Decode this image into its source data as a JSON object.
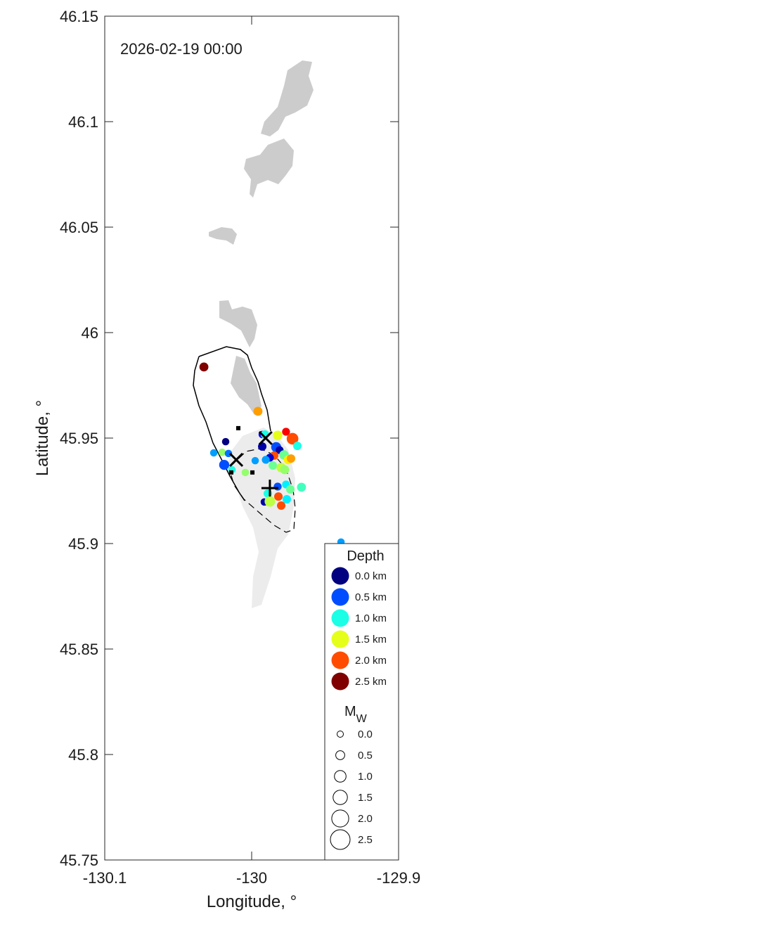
{
  "chart_data": {
    "type": "scatter",
    "title": "2026-02-19 00:00",
    "xlabel": "Longitude, °",
    "ylabel": "Latitude, °",
    "xlim": [
      -130.1,
      -129.9
    ],
    "ylim": [
      45.75,
      46.15
    ],
    "x_ticks": [
      "-130.1",
      "-130",
      "-129.9"
    ],
    "x_tick_values": [
      -130.1,
      -130.0,
      -129.9
    ],
    "y_ticks": [
      "45.75",
      "45.8",
      "45.85",
      "45.9",
      "45.95",
      "46",
      "46.05",
      "46.1",
      "46.15"
    ],
    "y_tick_values": [
      45.75,
      45.8,
      45.85,
      45.9,
      45.95,
      46.0,
      46.05,
      46.1,
      46.15
    ],
    "grid": false,
    "colormap": "jet",
    "color_range": [
      0,
      2.5
    ],
    "legend": {
      "placement": "bottom-right",
      "depth_title": "Depth",
      "depth_entries": [
        {
          "value": 0.0,
          "label": "0.0 km"
        },
        {
          "value": 0.5,
          "label": "0.5 km"
        },
        {
          "value": 1.0,
          "label": "1.0 km"
        },
        {
          "value": 1.5,
          "label": "1.5 km"
        },
        {
          "value": 2.0,
          "label": "2.0 km"
        },
        {
          "value": 2.5,
          "label": "2.5 km"
        }
      ],
      "mw_title": "M",
      "mw_subscript": "W",
      "mw_entries": [
        {
          "value": 0.0,
          "label": "0.0"
        },
        {
          "value": 0.5,
          "label": "0.5"
        },
        {
          "value": 1.0,
          "label": "1.0"
        },
        {
          "value": 1.5,
          "label": "1.5"
        },
        {
          "value": 2.0,
          "label": "2.0"
        },
        {
          "value": 2.5,
          "label": "2.5"
        }
      ]
    },
    "markers": [
      {
        "type": "x",
        "lon": -129.9905,
        "lat": 45.95
      },
      {
        "type": "x",
        "lon": -130.0105,
        "lat": 45.9397
      },
      {
        "type": "plus",
        "lon": -129.9876,
        "lat": 45.9263
      },
      {
        "type": "square",
        "lon": -130.0091,
        "lat": 45.9547
      },
      {
        "type": "square",
        "lon": -129.9995,
        "lat": 45.9337
      },
      {
        "type": "square",
        "lon": -130.0139,
        "lat": 45.9337
      }
    ],
    "events": [
      {
        "lon": -130.0325,
        "lat": 45.9837,
        "depth_km": 2.5,
        "mw": 0.5
      },
      {
        "lon": -129.9957,
        "lat": 45.9627,
        "depth_km": 1.8,
        "mw": 0.5
      },
      {
        "lon": -130.0177,
        "lat": 45.9483,
        "depth_km": 0.0,
        "mw": 0.2
      },
      {
        "lon": -130.0258,
        "lat": 45.943,
        "depth_km": 0.7,
        "mw": 0.2
      },
      {
        "lon": -130.0201,
        "lat": 45.9433,
        "depth_km": 1.3,
        "mw": 0.2
      },
      {
        "lon": -130.0158,
        "lat": 45.9427,
        "depth_km": 0.6,
        "mw": 0.2
      },
      {
        "lon": -130.0187,
        "lat": 45.9373,
        "depth_km": 0.5,
        "mw": 0.7
      },
      {
        "lon": -130.0134,
        "lat": 45.935,
        "depth_km": 1.0,
        "mw": 0.2
      },
      {
        "lon": -130.0043,
        "lat": 45.9337,
        "depth_km": 1.3,
        "mw": 0.2
      },
      {
        "lon": -129.9976,
        "lat": 45.9393,
        "depth_km": 0.7,
        "mw": 0.2
      },
      {
        "lon": -129.9928,
        "lat": 45.9517,
        "depth_km": 0.3,
        "mw": 0.2
      },
      {
        "lon": -129.9928,
        "lat": 45.946,
        "depth_km": 0.1,
        "mw": 0.4
      },
      {
        "lon": -129.991,
        "lat": 45.9517,
        "depth_km": 1.0,
        "mw": 0.4
      },
      {
        "lon": -129.9823,
        "lat": 45.9513,
        "depth_km": 1.5,
        "mw": 0.6
      },
      {
        "lon": -129.9766,
        "lat": 45.953,
        "depth_km": 2.2,
        "mw": 0.3
      },
      {
        "lon": -129.9722,
        "lat": 45.9497,
        "depth_km": 2.0,
        "mw": 1.0
      },
      {
        "lon": -129.9689,
        "lat": 45.9463,
        "depth_km": 1.0,
        "mw": 0.4
      },
      {
        "lon": -129.9833,
        "lat": 45.9457,
        "depth_km": 0.5,
        "mw": 0.7
      },
      {
        "lon": -129.981,
        "lat": 45.9443,
        "depth_km": 0.1,
        "mw": 0.3
      },
      {
        "lon": -129.9847,
        "lat": 45.9417,
        "depth_km": 2.0,
        "mw": 0.4
      },
      {
        "lon": -129.9876,
        "lat": 45.9407,
        "depth_km": 0.2,
        "mw": 0.3
      },
      {
        "lon": -129.9904,
        "lat": 45.9397,
        "depth_km": 0.7,
        "mw": 0.3
      },
      {
        "lon": -129.978,
        "lat": 45.942,
        "depth_km": 1.2,
        "mw": 0.6
      },
      {
        "lon": -129.9751,
        "lat": 45.9397,
        "depth_km": 1.6,
        "mw": 0.5
      },
      {
        "lon": -129.9732,
        "lat": 45.9403,
        "depth_km": 1.8,
        "mw": 0.4
      },
      {
        "lon": -129.9856,
        "lat": 45.937,
        "depth_km": 1.2,
        "mw": 0.4
      },
      {
        "lon": -129.9799,
        "lat": 45.936,
        "depth_km": 1.4,
        "mw": 0.6
      },
      {
        "lon": -129.9775,
        "lat": 45.935,
        "depth_km": 1.3,
        "mw": 0.5
      },
      {
        "lon": -129.9823,
        "lat": 45.927,
        "depth_km": 0.5,
        "mw": 0.3
      },
      {
        "lon": -129.9766,
        "lat": 45.928,
        "depth_km": 0.9,
        "mw": 0.3
      },
      {
        "lon": -129.9737,
        "lat": 45.9257,
        "depth_km": 1.2,
        "mw": 0.4
      },
      {
        "lon": -129.9661,
        "lat": 45.9267,
        "depth_km": 1.1,
        "mw": 0.5
      },
      {
        "lon": -129.989,
        "lat": 45.9237,
        "depth_km": 1.0,
        "mw": 0.4
      },
      {
        "lon": -129.9818,
        "lat": 45.9223,
        "depth_km": 2.0,
        "mw": 0.4
      },
      {
        "lon": -129.9761,
        "lat": 45.921,
        "depth_km": 0.9,
        "mw": 0.4
      },
      {
        "lon": -129.9914,
        "lat": 45.9197,
        "depth_km": 0.1,
        "mw": 0.2
      },
      {
        "lon": -129.9876,
        "lat": 45.92,
        "depth_km": 1.4,
        "mw": 0.8
      },
      {
        "lon": -129.9799,
        "lat": 45.918,
        "depth_km": 2.0,
        "mw": 0.4
      },
      {
        "lon": -129.9392,
        "lat": 45.9007,
        "depth_km": 0.7,
        "mw": 0.2
      }
    ]
  }
}
